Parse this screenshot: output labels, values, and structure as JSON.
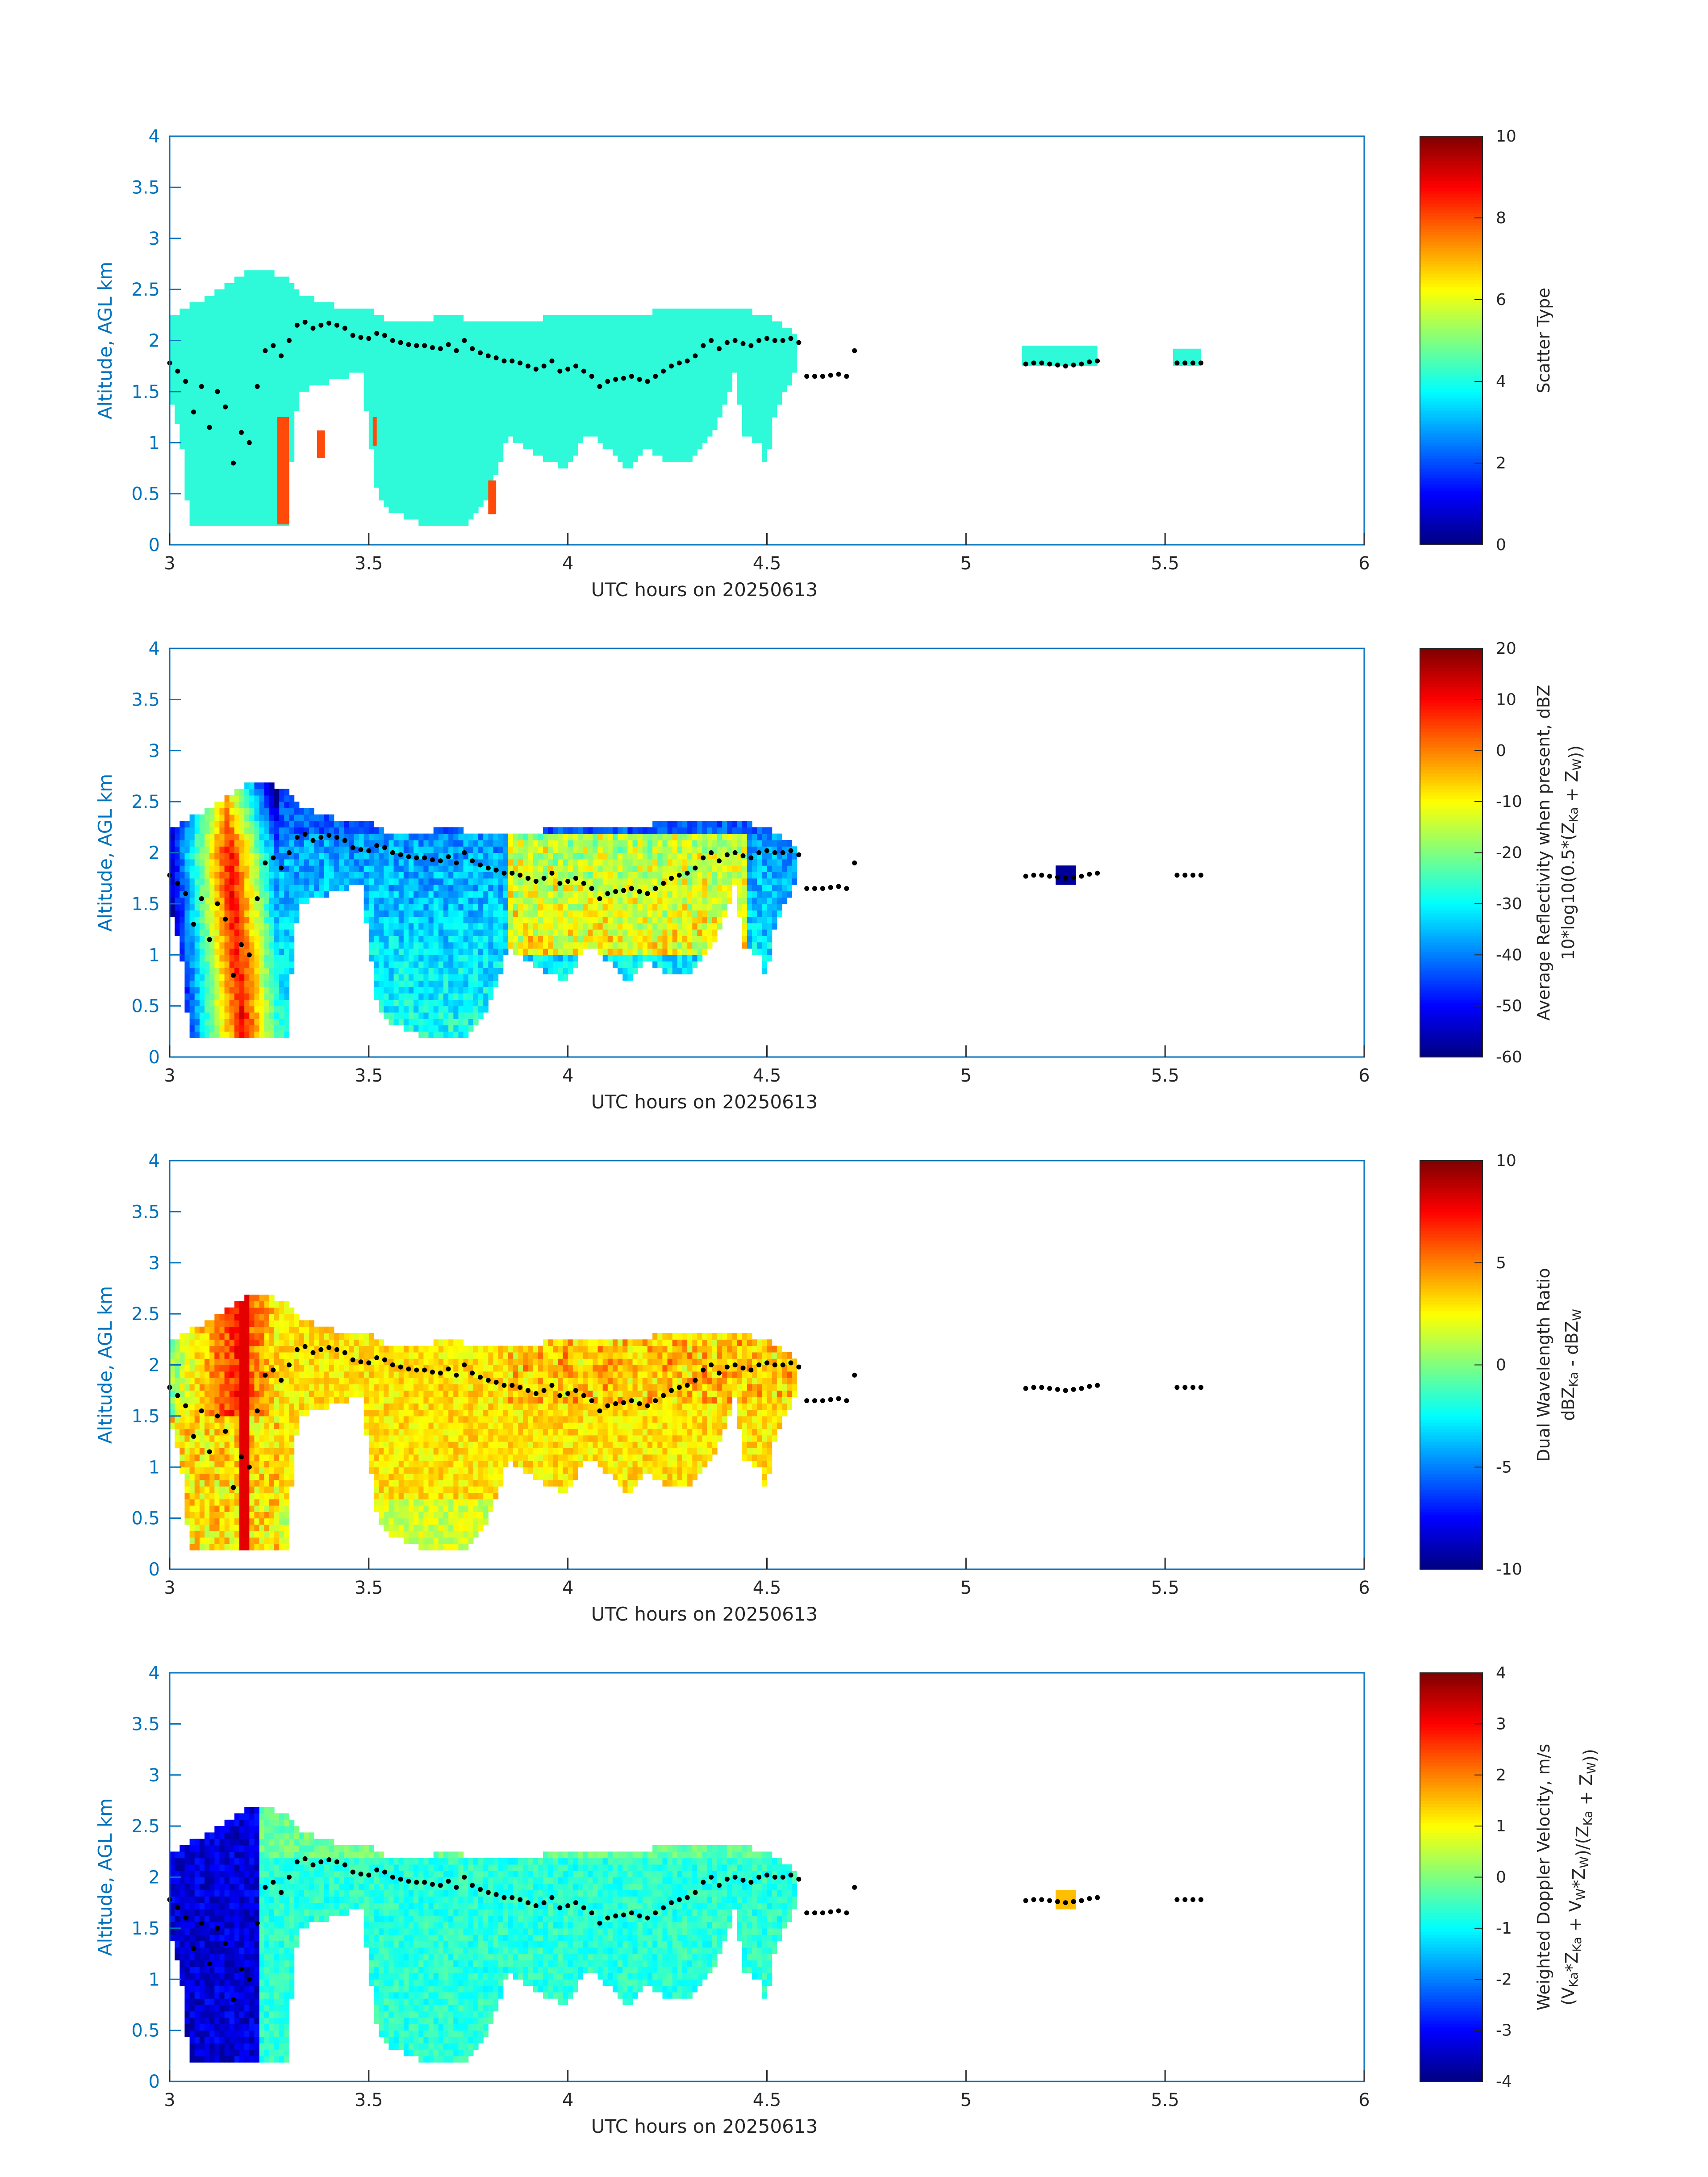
{
  "figure": {
    "xlabel": "UTC hours on 20250613",
    "ylabel": "Altitude, AGL km",
    "xlim": [
      3,
      6
    ],
    "ylim": [
      0,
      4
    ],
    "xticks": [
      "3",
      "3.5",
      "4",
      "4.5",
      "5",
      "5.5",
      "6"
    ],
    "yticks": [
      "0",
      "0.5",
      "1",
      "1.5",
      "2",
      "2.5",
      "3",
      "3.5",
      "4"
    ],
    "axis_color": "#0072BD",
    "marker_color": "#000000"
  },
  "chart_data": [
    {
      "type": "heatmap",
      "name": "scatter-type",
      "xlabel": "UTC hours on 20250613",
      "ylabel": "Altitude, AGL km",
      "xlim": [
        3,
        6
      ],
      "ylim": [
        0,
        4
      ],
      "colorbar": {
        "title": "Scatter Type",
        "title_lines": [
          {
            "text": "Scatter Type"
          }
        ],
        "range": [
          0,
          10
        ],
        "ticks": [
          "0",
          "2",
          "4",
          "6",
          "8",
          "10"
        ],
        "colormap": "jet"
      },
      "features": [
        {
          "region": "main cloud layer",
          "x": [
            3.0,
            4.58
          ],
          "y": [
            0.2,
            2.7
          ],
          "value": 3.8,
          "color": "#2ef9d8"
        },
        {
          "region": "isolated layer",
          "x": [
            5.14,
            5.33
          ],
          "y": [
            1.75,
            1.95
          ],
          "value": 3.8,
          "color": "#2ef9d8"
        },
        {
          "region": "isolated layer",
          "x": [
            5.52,
            5.59
          ],
          "y": [
            1.75,
            1.92
          ],
          "value": 3.8,
          "color": "#2ef9d8"
        },
        {
          "region": "column",
          "x": [
            3.27,
            3.3
          ],
          "y": [
            0.2,
            1.25
          ],
          "value": 8.5,
          "color": "#ff4a0a"
        },
        {
          "region": "column",
          "x": [
            3.37,
            3.39
          ],
          "y": [
            0.85,
            1.12
          ],
          "value": 8.5,
          "color": "#ff4a0a"
        },
        {
          "region": "column",
          "x": [
            3.51,
            3.52
          ],
          "y": [
            0.97,
            1.25
          ],
          "value": 8.5,
          "color": "#ff4a0a"
        },
        {
          "region": "column",
          "x": [
            3.8,
            3.82
          ],
          "y": [
            0.3,
            0.63
          ],
          "value": 8.5,
          "color": "#ff4a0a"
        }
      ]
    },
    {
      "type": "heatmap",
      "name": "average-reflectivity",
      "xlabel": "UTC hours on 20250613",
      "ylabel": "Altitude, AGL km",
      "xlim": [
        3,
        6
      ],
      "ylim": [
        0,
        4
      ],
      "colorbar": {
        "title": "Average Reflectivity when present, dBZ",
        "title_lines": [
          {
            "text": "Average Reflectivity when present, dBZ"
          },
          {
            "text": "10*log10(0.5*(Z",
            "sub": "Ka",
            "text2": " + Z",
            "sub2": "W",
            "text3": "))"
          }
        ],
        "range": [
          -60,
          20
        ],
        "ticks": [
          "-60",
          "-50",
          "-40",
          "-30",
          "-20",
          "-10",
          "0",
          "10",
          "20"
        ],
        "colormap": "jet"
      },
      "features": [
        {
          "region": "convective core",
          "x": [
            3.05,
            3.27
          ],
          "y": [
            0.2,
            2.7
          ],
          "value": 5
        },
        {
          "region": "stratiform layer",
          "x": [
            3.3,
            4.58
          ],
          "y": [
            0.2,
            2.35
          ],
          "value": -25
        },
        {
          "region": "isolated echo",
          "x": [
            5.22,
            5.28
          ],
          "y": [
            1.7,
            1.85
          ],
          "value": -58
        }
      ]
    },
    {
      "type": "heatmap",
      "name": "dual-wavelength-ratio",
      "xlabel": "UTC hours on 20250613",
      "ylabel": "Altitude, AGL km",
      "xlim": [
        3,
        6
      ],
      "ylim": [
        0,
        4
      ],
      "colorbar": {
        "title": "Dual Wavelength Ratio",
        "title_lines": [
          {
            "text": "Dual Wavelength Ratio"
          },
          {
            "text": "dBZ",
            "sub": "Ka",
            "text2": " - dBZ",
            "sub2": "W"
          }
        ],
        "range": [
          -10,
          10
        ],
        "ticks": [
          "-10",
          "-5",
          "0",
          "5",
          "10"
        ],
        "colormap": "jet"
      },
      "features": [
        {
          "region": "convective core",
          "x": [
            3.05,
            3.27
          ],
          "y": [
            0.25,
            2.7
          ],
          "value": 7
        },
        {
          "region": "stratiform layer",
          "x": [
            3.3,
            4.58
          ],
          "y": [
            0.25,
            2.35
          ],
          "value": 3
        }
      ]
    },
    {
      "type": "heatmap",
      "name": "weighted-doppler-velocity",
      "xlabel": "UTC hours on 20250613",
      "ylabel": "Altitude, AGL km",
      "xlim": [
        3,
        6
      ],
      "ylim": [
        0,
        4
      ],
      "colorbar": {
        "title": "Weighted Doppler Velocity, m/s",
        "title_lines": [
          {
            "text": "Weighted Doppler Velocity, m/s"
          },
          {
            "text": "(V",
            "sub": "Ka",
            "text2": "*Z",
            "sub2": "Ka",
            "text3": " + V",
            "sub3": "W",
            "text4": "*Z",
            "sub4": "W",
            "text5": ")/(Z",
            "sub5": "Ka",
            "text6": " + Z",
            "sub6": "W",
            "text7": "))"
          }
        ],
        "range": [
          -4,
          4
        ],
        "ticks": [
          "-4",
          "-3",
          "-2",
          "-1",
          "0",
          "1",
          "2",
          "3",
          "4"
        ],
        "colormap": "jet"
      },
      "features": [
        {
          "region": "convective core",
          "x": [
            3.05,
            3.23
          ],
          "y": [
            0.2,
            2.7
          ],
          "value": -3.3
        },
        {
          "region": "stratiform layer",
          "x": [
            3.23,
            4.58
          ],
          "y": [
            0.2,
            2.35
          ],
          "value": -0.6
        },
        {
          "region": "isolated echo",
          "x": [
            5.22,
            5.28
          ],
          "y": [
            1.7,
            1.85
          ],
          "value": 1.5
        }
      ]
    }
  ],
  "markers": {
    "description": "dotted trace",
    "x": [
      3.0,
      3.02,
      3.04,
      3.06,
      3.08,
      3.1,
      3.12,
      3.14,
      3.16,
      3.18,
      3.2,
      3.22,
      3.24,
      3.26,
      3.28,
      3.3,
      3.32,
      3.34,
      3.36,
      3.38,
      3.4,
      3.42,
      3.44,
      3.46,
      3.48,
      3.5,
      3.52,
      3.54,
      3.56,
      3.58,
      3.6,
      3.62,
      3.64,
      3.66,
      3.68,
      3.7,
      3.72,
      3.74,
      3.76,
      3.78,
      3.8,
      3.82,
      3.84,
      3.86,
      3.88,
      3.9,
      3.92,
      3.94,
      3.96,
      3.98,
      4.0,
      4.02,
      4.04,
      4.06,
      4.08,
      4.1,
      4.12,
      4.14,
      4.16,
      4.18,
      4.2,
      4.22,
      4.24,
      4.26,
      4.28,
      4.3,
      4.32,
      4.34,
      4.36,
      4.38,
      4.4,
      4.42,
      4.44,
      4.46,
      4.48,
      4.5,
      4.52,
      4.54,
      4.56,
      4.58,
      4.6,
      4.62,
      4.64,
      4.66,
      4.68,
      4.7,
      4.72,
      5.15,
      5.17,
      5.19,
      5.21,
      5.23,
      5.25,
      5.27,
      5.29,
      5.31,
      5.33,
      5.53,
      5.55,
      5.57,
      5.59
    ],
    "y": [
      1.78,
      1.7,
      1.6,
      1.3,
      1.55,
      1.15,
      1.5,
      1.35,
      0.8,
      1.1,
      1.0,
      1.55,
      1.9,
      1.95,
      1.85,
      2.0,
      2.15,
      2.18,
      2.12,
      2.15,
      2.17,
      2.15,
      2.12,
      2.05,
      2.03,
      2.02,
      2.07,
      2.05,
      2.0,
      1.98,
      1.96,
      1.95,
      1.95,
      1.93,
      1.92,
      1.96,
      1.9,
      2.0,
      1.92,
      1.88,
      1.85,
      1.83,
      1.8,
      1.8,
      1.78,
      1.75,
      1.72,
      1.75,
      1.8,
      1.7,
      1.72,
      1.75,
      1.7,
      1.65,
      1.55,
      1.6,
      1.62,
      1.63,
      1.65,
      1.62,
      1.6,
      1.65,
      1.7,
      1.75,
      1.78,
      1.8,
      1.85,
      1.95,
      2.0,
      1.92,
      1.98,
      2.0,
      1.97,
      1.95,
      2.0,
      2.02,
      2.0,
      2.0,
      2.02,
      1.98,
      1.65,
      1.65,
      1.65,
      1.66,
      1.67,
      1.65,
      1.9,
      1.77,
      1.78,
      1.78,
      1.77,
      1.76,
      1.75,
      1.76,
      1.77,
      1.79,
      1.8,
      1.78,
      1.78,
      1.78,
      1.78
    ],
    "marker_x": [
      3.0,
      3.02,
      3.04,
      3.06,
      3.08,
      3.1,
      3.12,
      3.14,
      3.16,
      3.18,
      3.2,
      3.22,
      3.24,
      3.26,
      3.28,
      3.3,
      3.32,
      3.34,
      3.36,
      3.38,
      3.4,
      3.42,
      3.44,
      3.46,
      3.48,
      3.5,
      3.52,
      3.54,
      3.56,
      3.58,
      3.6,
      3.62,
      3.64,
      3.66,
      3.68,
      3.7,
      3.72,
      3.74,
      3.76,
      3.78,
      3.8,
      3.82,
      3.84,
      3.86,
      3.88,
      3.9,
      3.92,
      3.94,
      3.96,
      3.98,
      4.0,
      4.02,
      4.04,
      4.06,
      4.08,
      4.1,
      4.12,
      4.14,
      4.16,
      4.18,
      4.2,
      4.22,
      4.24,
      4.26,
      4.28,
      4.3,
      4.32,
      4.34,
      4.36,
      4.38,
      4.4,
      4.42,
      4.44,
      4.46,
      4.48,
      4.5,
      4.52,
      4.54,
      4.56,
      4.58,
      4.6,
      4.62,
      4.64,
      4.66,
      4.68,
      4.7,
      4.72,
      5.15,
      5.17,
      5.19,
      5.21,
      5.23,
      5.25,
      5.27,
      5.29,
      5.31,
      5.33,
      5.53,
      5.55,
      5.57,
      5.59
    ]
  }
}
